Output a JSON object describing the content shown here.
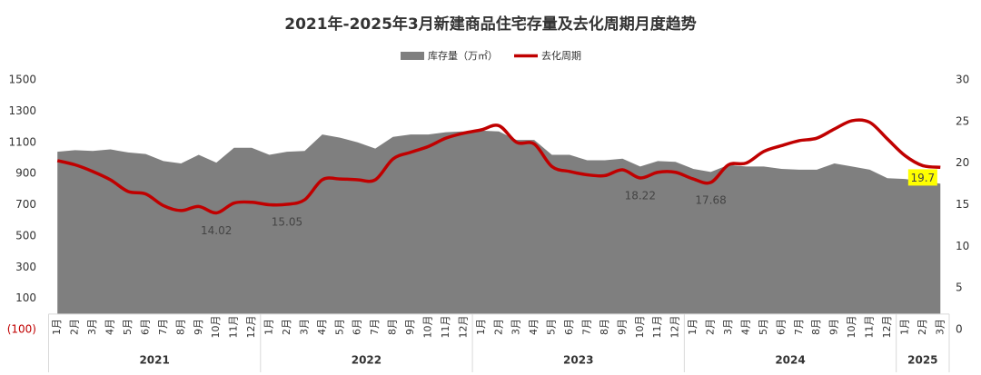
{
  "chart_data": {
    "type": "area-line",
    "title": "2021年-2025年3月新建商品住宅存量及去化周期月度趋势",
    "categories": [
      "1月",
      "2月",
      "3月",
      "4月",
      "5月",
      "6月",
      "7月",
      "8月",
      "9月",
      "10月",
      "11月",
      "12月",
      "1月",
      "2月",
      "3月",
      "4月",
      "5月",
      "6月",
      "7月",
      "8月",
      "9月",
      "10月",
      "11月",
      "12月",
      "1月",
      "2月",
      "3月",
      "4月",
      "5月",
      "6月",
      "7月",
      "8月",
      "9月",
      "10月",
      "11月",
      "12月",
      "1月",
      "2月",
      "3月",
      "4月",
      "5月",
      "6月",
      "7月",
      "8月",
      "9月",
      "10月",
      "11月",
      "12月",
      "1月",
      "2月",
      "3月"
    ],
    "years": [
      {
        "name": "2021",
        "months": 12
      },
      {
        "name": "2022",
        "months": 12
      },
      {
        "name": "2023",
        "months": 12
      },
      {
        "name": "2024",
        "months": 12
      },
      {
        "name": "2025",
        "months": 3
      }
    ],
    "series": [
      {
        "name": "库存量（万㎡）",
        "color": "#7f7f7f",
        "kind": "area",
        "axis": "y",
        "values": [
          1040,
          1050,
          1045,
          1055,
          1035,
          1025,
          980,
          965,
          1020,
          970,
          1065,
          1065,
          1020,
          1040,
          1045,
          1150,
          1130,
          1100,
          1060,
          1135,
          1150,
          1150,
          1165,
          1170,
          1175,
          1170,
          1115,
          1115,
          1020,
          1020,
          985,
          985,
          995,
          945,
          980,
          975,
          930,
          910,
          955,
          945,
          945,
          930,
          925,
          925,
          965,
          945,
          925,
          870,
          865,
          850,
          835
        ]
      },
      {
        "name": "去化周期",
        "color": "#c00000",
        "kind": "line",
        "axis": "y2",
        "values": [
          20.3,
          19.8,
          19.0,
          18.0,
          16.6,
          16.3,
          14.9,
          14.3,
          14.8,
          14.02,
          15.2,
          15.3,
          15.0,
          15.05,
          15.6,
          18.0,
          18.1,
          18.0,
          18.0,
          20.5,
          21.3,
          22.0,
          23.0,
          23.6,
          24.0,
          24.5,
          22.5,
          22.3,
          19.6,
          19.0,
          18.6,
          18.5,
          19.2,
          18.22,
          18.9,
          18.9,
          18.1,
          17.68,
          19.8,
          20.0,
          21.4,
          22.1,
          22.7,
          23.0,
          24.1,
          25.1,
          24.9,
          22.9,
          20.9,
          19.7,
          19.5
        ],
        "labeled_points": [
          9,
          13,
          33,
          37,
          49
        ],
        "highlight_point": 49,
        "highlight_color": "#ffff00"
      }
    ],
    "ylim": [
      -100,
      1500
    ],
    "yticks": [
      {
        "value": -100,
        "label": "(100)"
      },
      100,
      300,
      500,
      700,
      900,
      1100,
      1300,
      1500
    ],
    "negative_tick_color": "#c00000",
    "y2lim": [
      0,
      30
    ],
    "y2ticks": [
      0,
      5,
      10,
      15,
      20,
      25,
      30
    ],
    "legend_position": "top"
  }
}
